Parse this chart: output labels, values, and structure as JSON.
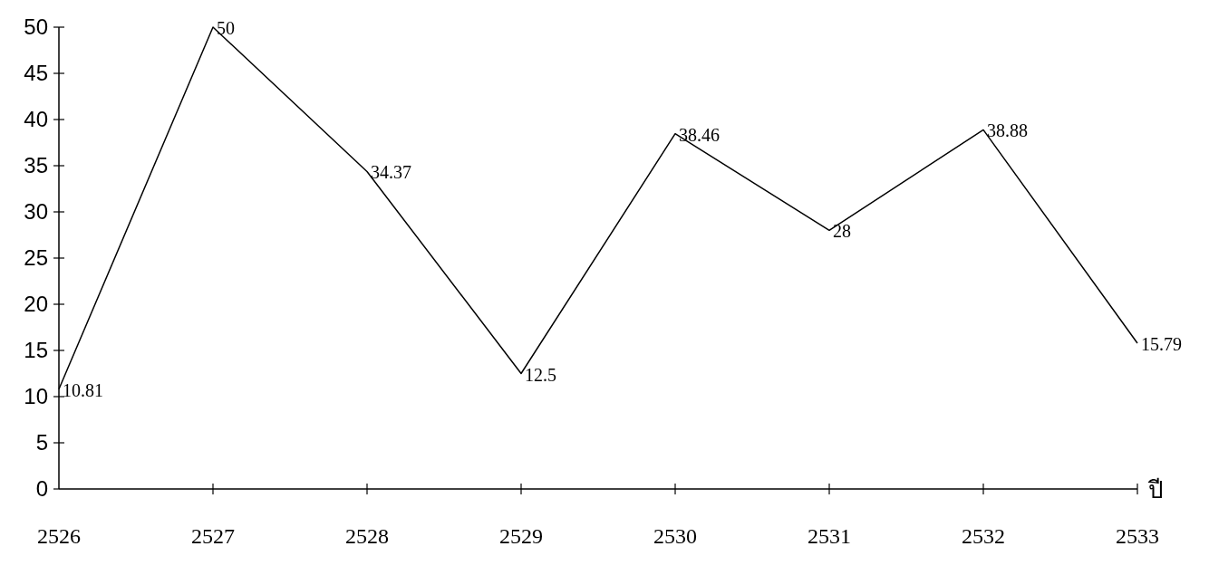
{
  "chart_data": {
    "type": "line",
    "xlabel": "ปี",
    "categories": [
      "2526",
      "2527",
      "2528",
      "2529",
      "2530",
      "2531",
      "2532",
      "2533"
    ],
    "values": [
      10.81,
      50,
      34.37,
      12.5,
      38.46,
      28,
      38.88,
      15.79
    ],
    "color": "#000000",
    "ylim": [
      0,
      50
    ],
    "yticks": [
      0,
      5,
      10,
      15,
      20,
      25,
      30,
      35,
      40,
      45,
      50
    ],
    "data_labels": true,
    "marker": "none"
  }
}
